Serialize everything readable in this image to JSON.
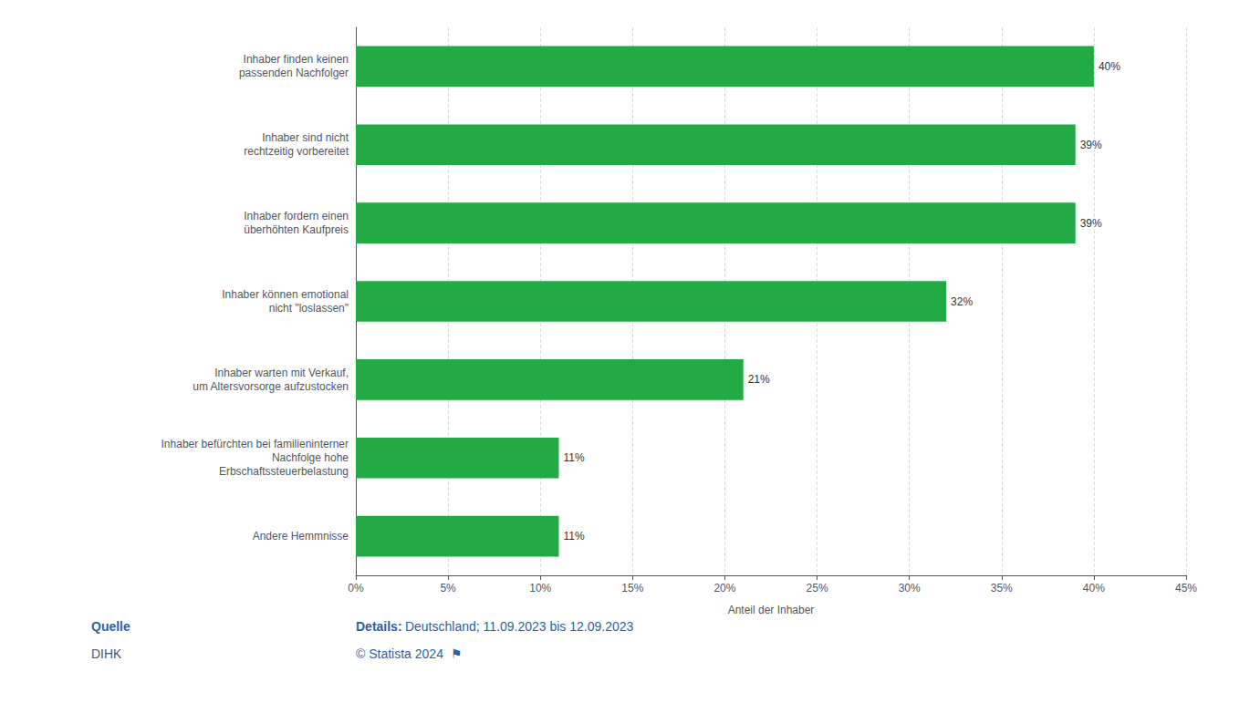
{
  "chart_data": {
    "type": "bar",
    "orientation": "horizontal",
    "categories": [
      "Andere Hemmnisse",
      "Inhaber befürchten bei familieninterner\nNachfolge hohe\nErbschaftssteuerbelastung",
      "Inhaber warten mit Verkauf,\num Altersvorsorge aufzustocken",
      "Inhaber können emotional\nnicht \"loslassen\"",
      "Inhaber fordern einen\nüberhöhten Kaufpreis",
      "Inhaber sind nicht\nrechtzeitig vorbereitet",
      "Inhaber finden keinen\npassenden Nachfolger"
    ],
    "values": [
      11,
      11,
      21,
      32,
      39,
      39,
      40
    ],
    "value_labels": [
      "11%",
      "11%",
      "21%",
      "32%",
      "39%",
      "39%",
      "40%"
    ],
    "data_labels": true,
    "color": "#22aa44",
    "xlabel": "Anteil der Inhaber",
    "xlim": [
      0,
      45
    ],
    "xticks": [
      {
        "value": 0,
        "label": "0%"
      },
      {
        "value": 5,
        "label": "5%"
      },
      {
        "value": 10,
        "label": "10%"
      },
      {
        "value": 15,
        "label": "15%"
      },
      {
        "value": 20,
        "label": "20%"
      },
      {
        "value": 25,
        "label": "25%"
      },
      {
        "value": 30,
        "label": "30%"
      },
      {
        "value": 35,
        "label": "35%"
      },
      {
        "value": 40,
        "label": "40%"
      },
      {
        "value": 45,
        "label": "45%"
      }
    ],
    "grid": true,
    "annotations": [
      "Quelle",
      "DIHK",
      "Details:",
      "Deutschland; 11.09.2023 bis 12.09.2023",
      "© Statista 2024  ⚑"
    ]
  }
}
